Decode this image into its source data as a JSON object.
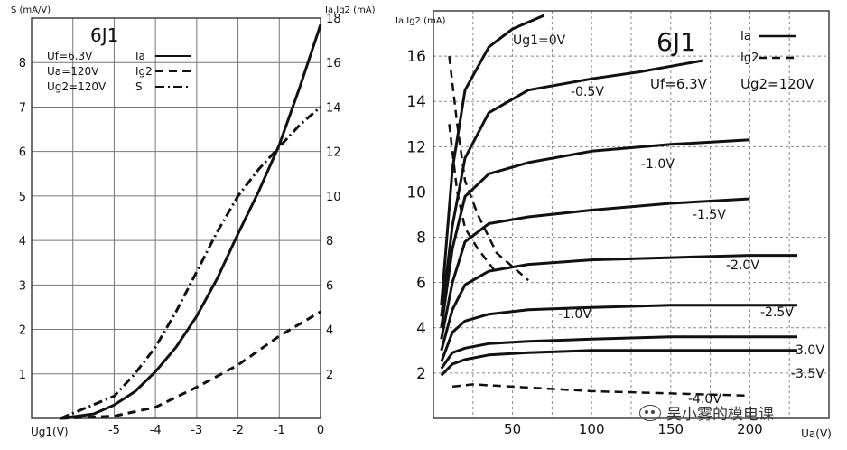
{
  "chart_data": [
    {
      "type": "line",
      "title": "6J1",
      "legend_conditions": [
        "Uf=6.3V",
        "Ua=120V",
        "Ug2=120V"
      ],
      "legend": [
        {
          "label": "Ia",
          "style": "solid"
        },
        {
          "label": "Ig2",
          "style": "dashed"
        },
        {
          "label": "S",
          "style": "dashdot"
        }
      ],
      "xlabel": "Ug1(V)",
      "ylabel_left": "S (mA/V)",
      "ylabel_right": "Ia,Ig2 (mA)",
      "xlim": [
        -7,
        0
      ],
      "ylim_left": [
        0,
        9
      ],
      "ylim_right": [
        0,
        18
      ],
      "x_ticks": [
        "-5",
        "-4",
        "-3",
        "-2",
        "-1",
        "0"
      ],
      "y_ticks_left": [
        "1",
        "2",
        "3",
        "4",
        "5",
        "6",
        "7",
        "8"
      ],
      "y_ticks_right": [
        "2",
        "4",
        "6",
        "8",
        "10",
        "12",
        "14",
        "16",
        "18"
      ],
      "grid": true,
      "series": [
        {
          "name": "Ia",
          "axis": "right",
          "style": "solid",
          "x": [
            -6.3,
            -5.5,
            -5,
            -4.5,
            -4,
            -3.5,
            -3,
            -2.5,
            -2,
            -1.5,
            -1,
            -0.5,
            0
          ],
          "y": [
            0,
            0.2,
            0.6,
            1.2,
            2.1,
            3.2,
            4.6,
            6.3,
            8.3,
            10.2,
            12.3,
            14.9,
            17.7
          ]
        },
        {
          "name": "Ig2",
          "axis": "right",
          "style": "dashed",
          "x": [
            -6.3,
            -5,
            -4,
            -3,
            -2,
            -1,
            0
          ],
          "y": [
            0,
            0.1,
            0.5,
            1.4,
            2.4,
            3.7,
            4.8
          ]
        },
        {
          "name": "S",
          "axis": "left",
          "style": "dashdot",
          "x": [
            -6.3,
            -5,
            -4.5,
            -4,
            -3.5,
            -3,
            -2.5,
            -2,
            -1.5,
            -1,
            -0.5,
            0
          ],
          "y": [
            0,
            0.5,
            1.0,
            1.6,
            2.4,
            3.3,
            4.2,
            5.0,
            5.6,
            6.1,
            6.6,
            7.0
          ]
        }
      ]
    },
    {
      "type": "line",
      "title": "6J1",
      "legend": [
        {
          "label": "Ia",
          "style": "solid"
        },
        {
          "label": "Ig2",
          "style": "dashed"
        }
      ],
      "legend_conditions": [
        "Uf=6.3V",
        "Ug2=120V"
      ],
      "xlabel": "Ua(V)",
      "ylabel": "Ia,Ig2 (mA)",
      "xlim": [
        0,
        250
      ],
      "ylim": [
        0,
        18
      ],
      "x_ticks": [
        "50",
        "100",
        "150",
        "200"
      ],
      "y_ticks": [
        "2",
        "4",
        "6",
        "8",
        "10",
        "12",
        "14",
        "16"
      ],
      "grid": true,
      "ia_curves": [
        {
          "label": "Ug1=0V",
          "x": [
            5,
            12,
            20,
            35,
            50,
            70
          ],
          "y": [
            5,
            11,
            14.5,
            16.4,
            17.2,
            17.8
          ]
        },
        {
          "label": "-0.5V",
          "x": [
            5,
            12,
            20,
            35,
            60,
            100,
            130,
            170
          ],
          "y": [
            4.5,
            8.5,
            11.5,
            13.5,
            14.5,
            15,
            15.3,
            15.8
          ]
        },
        {
          "label": "-1.0V",
          "x": [
            5,
            12,
            20,
            35,
            60,
            100,
            150,
            200
          ],
          "y": [
            4,
            7.5,
            9.8,
            10.8,
            11.3,
            11.8,
            12.1,
            12.3
          ]
        },
        {
          "label": "-1.5V",
          "x": [
            5,
            12,
            20,
            35,
            60,
            100,
            150,
            200
          ],
          "y": [
            3.5,
            6,
            7.8,
            8.6,
            8.9,
            9.2,
            9.5,
            9.7
          ]
        },
        {
          "label": "-2.0V",
          "x": [
            5,
            12,
            20,
            35,
            60,
            100,
            150,
            200,
            230
          ],
          "y": [
            3,
            4.8,
            5.9,
            6.5,
            6.8,
            7,
            7.1,
            7.2,
            7.2
          ]
        },
        {
          "label": "-2.5V",
          "x": [
            5,
            12,
            20,
            35,
            60,
            100,
            150,
            200,
            230
          ],
          "y": [
            2.5,
            3.8,
            4.3,
            4.6,
            4.8,
            4.9,
            5,
            5,
            5
          ]
        },
        {
          "label": "-3.0V",
          "x": [
            5,
            12,
            20,
            35,
            60,
            100,
            150,
            200,
            230
          ],
          "y": [
            2.2,
            2.9,
            3.1,
            3.3,
            3.4,
            3.5,
            3.6,
            3.6,
            3.6
          ]
        },
        {
          "label": "-3.5V",
          "x": [
            5,
            12,
            20,
            35,
            60,
            100,
            150,
            200,
            230
          ],
          "y": [
            1.9,
            2.4,
            2.6,
            2.8,
            2.9,
            3,
            3,
            3,
            3
          ]
        }
      ],
      "ig2_curves": [
        {
          "label": "0V",
          "x": [
            10,
            15,
            20,
            28,
            40,
            55,
            60
          ],
          "y": [
            16,
            13,
            10.5,
            9,
            7.3,
            6.4,
            6.1
          ]
        },
        {
          "label": "-0.5V",
          "x": [
            10,
            15,
            20,
            28,
            40
          ],
          "y": [
            13,
            10,
            8.4,
            7.5,
            6.4
          ]
        },
        {
          "label": "-4.0V",
          "x": [
            12,
            25,
            50,
            100,
            150,
            200
          ],
          "y": [
            1.4,
            1.5,
            1.4,
            1.2,
            1.1,
            1
          ]
        }
      ],
      "annotations": [
        "Ug1=0V",
        "-0.5V",
        "-1.0V",
        "-1.5V",
        "-2.0V",
        "-2.5V",
        "-3.0V",
        "-3.5V",
        "-4.0V",
        "-1.0V"
      ]
    }
  ],
  "watermark": {
    "text": "吴小雾的模电课",
    "icon": "wechat-icon"
  }
}
